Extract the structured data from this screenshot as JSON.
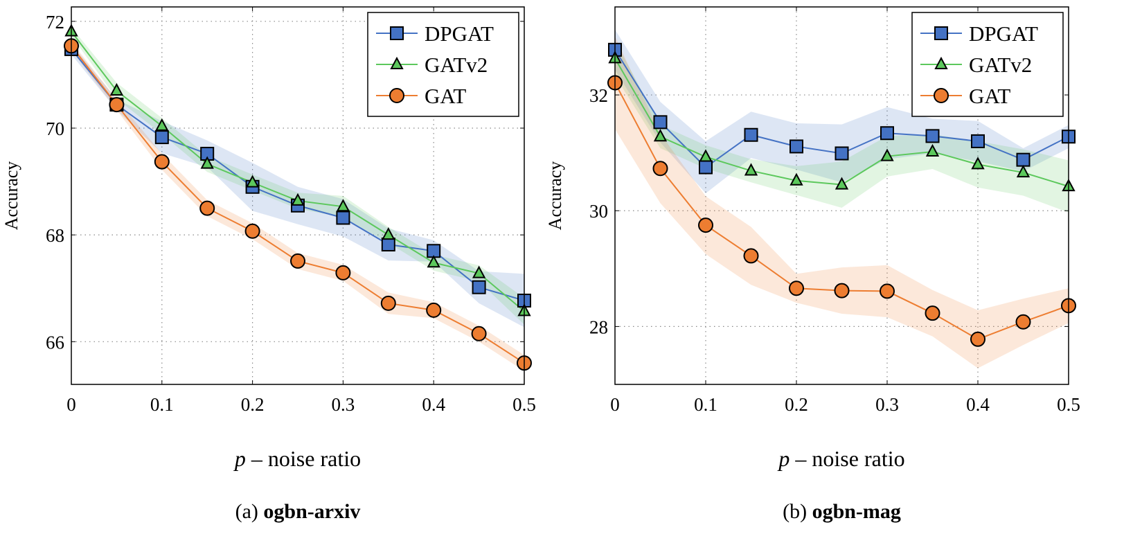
{
  "chart_data": [
    {
      "type": "line",
      "caption_prefix": "(a)",
      "caption_bold": "ogbn-arxiv",
      "xlabel_var": "p",
      "xlabel": "– noise ratio",
      "ylabel": "Accuracy",
      "xlim": [
        0,
        0.5
      ],
      "ylim": [
        65.2,
        72.27
      ],
      "xticks": [
        0,
        0.1,
        0.2,
        0.3,
        0.4,
        0.5
      ],
      "xtick_labels": [
        "0",
        "0.1",
        "0.2",
        "0.3",
        "0.4",
        "0.5"
      ],
      "yticks": [
        66,
        68,
        70,
        72
      ],
      "ytick_labels": [
        "66",
        "68",
        "70",
        "72"
      ],
      "grid": true,
      "legend": "top-right",
      "x": [
        0,
        0.05,
        0.1,
        0.15,
        0.2,
        0.25,
        0.3,
        0.35,
        0.4,
        0.45,
        0.5
      ],
      "series": [
        {
          "name": "DPGAT",
          "marker": "square",
          "color": "#4472c4",
          "values": [
            71.48,
            70.44,
            69.83,
            69.52,
            68.9,
            68.55,
            68.32,
            67.82,
            67.7,
            67.02,
            66.77
          ],
          "band": [
            0.1,
            0.1,
            0.3,
            0.25,
            0.45,
            0.35,
            0.35,
            0.3,
            0.2,
            0.3,
            0.5
          ]
        },
        {
          "name": "GATv2",
          "marker": "triangle",
          "color": "#5cc85c",
          "values": [
            71.81,
            70.7,
            70.04,
            69.33,
            68.98,
            68.64,
            68.53,
            68.0,
            67.48,
            67.28,
            66.57
          ],
          "band": [
            0.08,
            0.15,
            0.15,
            0.15,
            0.15,
            0.15,
            0.2,
            0.15,
            0.15,
            0.15,
            0.25
          ]
        },
        {
          "name": "GAT",
          "marker": "circle",
          "color": "#ed7d31",
          "values": [
            71.54,
            70.44,
            69.37,
            68.5,
            68.07,
            67.51,
            67.29,
            66.72,
            66.59,
            66.15,
            65.6
          ],
          "band": [
            0.08,
            0.1,
            0.15,
            0.15,
            0.15,
            0.15,
            0.15,
            0.2,
            0.15,
            0.15,
            0.15
          ]
        }
      ]
    },
    {
      "type": "line",
      "caption_prefix": "(b)",
      "caption_bold": "ogbn-mag",
      "xlabel_var": "p",
      "xlabel": "– noise ratio",
      "ylabel": "Accuracy",
      "xlim": [
        0,
        0.5
      ],
      "ylim": [
        27.0,
        33.52
      ],
      "xticks": [
        0,
        0.1,
        0.2,
        0.3,
        0.4,
        0.5
      ],
      "xtick_labels": [
        "0",
        "0.1",
        "0.2",
        "0.3",
        "0.4",
        "0.5"
      ],
      "yticks": [
        28,
        30,
        32
      ],
      "ytick_labels": [
        "28",
        "30",
        "32"
      ],
      "grid": true,
      "legend": "top-right",
      "x": [
        0,
        0.05,
        0.1,
        0.15,
        0.2,
        0.25,
        0.3,
        0.35,
        0.4,
        0.45,
        0.5
      ],
      "series": [
        {
          "name": "DPGAT",
          "marker": "square",
          "color": "#4472c4",
          "values": [
            32.78,
            31.53,
            30.75,
            31.31,
            31.11,
            30.99,
            31.34,
            31.29,
            31.2,
            30.88,
            31.28
          ],
          "band": [
            0.35,
            0.35,
            0.45,
            0.4,
            0.4,
            0.5,
            0.45,
            0.3,
            0.35,
            0.2,
            0.2
          ]
        },
        {
          "name": "GATv2",
          "marker": "triangle",
          "color": "#5cc85c",
          "values": [
            32.63,
            31.28,
            30.93,
            30.69,
            30.52,
            30.45,
            30.94,
            31.02,
            30.8,
            30.66,
            30.42
          ],
          "band": [
            0.3,
            0.2,
            0.2,
            0.2,
            0.25,
            0.4,
            0.35,
            0.3,
            0.4,
            0.4,
            0.45
          ]
        },
        {
          "name": "GAT",
          "marker": "circle",
          "color": "#ed7d31",
          "values": [
            32.21,
            30.73,
            29.75,
            29.22,
            28.66,
            28.62,
            28.61,
            28.23,
            27.78,
            28.08,
            28.36
          ],
          "band": [
            0.8,
            0.6,
            0.5,
            0.5,
            0.25,
            0.4,
            0.45,
            0.4,
            0.5,
            0.4,
            0.3
          ]
        }
      ]
    }
  ]
}
